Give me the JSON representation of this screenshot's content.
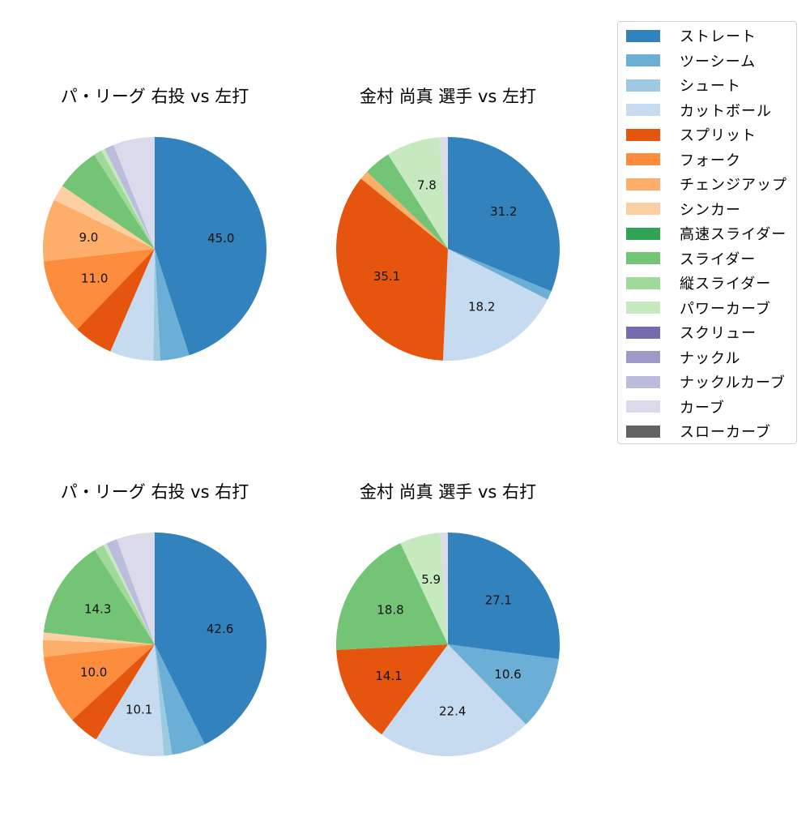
{
  "chart_data": [
    {
      "type": "pie",
      "title": "パ・リーグ 右投 vs 左打",
      "categories": [
        "ストレート",
        "ツーシーム",
        "シュート",
        "カットボール",
        "スプリット",
        "フォーク",
        "チェンジアップ",
        "シンカー",
        "スライダー",
        "縦スライダー",
        "パワーカーブ",
        "ナックルカーブ",
        "カーブ"
      ],
      "values": [
        45.0,
        4.2,
        1.0,
        6.3,
        5.7,
        11.0,
        9.0,
        2.3,
        6.4,
        1.2,
        0.5,
        1.4,
        6.0
      ],
      "labels_shown": {
        "ストレート": "45.0",
        "フォーク": "11.0",
        "チェンジアップ": "9.0"
      },
      "startangle": 90,
      "counterclock": false
    },
    {
      "type": "pie",
      "title": "金村 尚真 選手 vs 左打",
      "categories": [
        "ストレート",
        "ツーシーム",
        "カットボール",
        "スプリット",
        "チェンジアップ",
        "スライダー",
        "パワーカーブ",
        "カーブ"
      ],
      "values": [
        31.2,
        1.3,
        18.2,
        35.1,
        1.3,
        3.9,
        7.8,
        1.2
      ],
      "labels_shown": {
        "ストレート": "31.2",
        "カットボール": "18.2",
        "スプリット": "35.1",
        "パワーカーブ": "7.8"
      },
      "startangle": 90,
      "counterclock": false
    },
    {
      "type": "pie",
      "title": "パ・リーグ 右投 vs 右打",
      "categories": [
        "ストレート",
        "ツーシーム",
        "シュート",
        "カットボール",
        "スプリット",
        "フォーク",
        "チェンジアップ",
        "シンカー",
        "スライダー",
        "縦スライダー",
        "パワーカーブ",
        "ナックルカーブ",
        "カーブ"
      ],
      "values": [
        42.6,
        4.9,
        1.2,
        10.1,
        4.4,
        10.0,
        2.4,
        1.1,
        14.3,
        1.4,
        0.5,
        1.6,
        5.5
      ],
      "labels_shown": {
        "ストレート": "42.6",
        "カットボール": "10.1",
        "フォーク": "10.0",
        "スライダー": "14.3"
      },
      "startangle": 90,
      "counterclock": false
    },
    {
      "type": "pie",
      "title": "金村 尚真 選手 vs 右打",
      "categories": [
        "ストレート",
        "ツーシーム",
        "カットボール",
        "スプリット",
        "スライダー",
        "パワーカーブ",
        "カーブ"
      ],
      "values": [
        27.1,
        10.6,
        22.4,
        14.1,
        18.8,
        5.9,
        1.1
      ],
      "labels_shown": {
        "ストレート": "27.1",
        "ツーシーム": "10.6",
        "カットボール": "22.4",
        "スプリット": "14.1",
        "スライダー": "18.8",
        "パワーカーブ": "5.9"
      },
      "startangle": 90,
      "counterclock": false
    }
  ],
  "legend": {
    "items": [
      {
        "label": "ストレート",
        "color": "#3182bd"
      },
      {
        "label": "ツーシーム",
        "color": "#6baed6"
      },
      {
        "label": "シュート",
        "color": "#9ecae1"
      },
      {
        "label": "カットボール",
        "color": "#c6dbef"
      },
      {
        "label": "スプリット",
        "color": "#e6550d"
      },
      {
        "label": "フォーク",
        "color": "#fd8d3c"
      },
      {
        "label": "チェンジアップ",
        "color": "#fdae6b"
      },
      {
        "label": "シンカー",
        "color": "#fdd0a2"
      },
      {
        "label": "高速スライダー",
        "color": "#31a354"
      },
      {
        "label": "スライダー",
        "color": "#74c476"
      },
      {
        "label": "縦スライダー",
        "color": "#a1d99b"
      },
      {
        "label": "パワーカーブ",
        "color": "#c7e9c0"
      },
      {
        "label": "スクリュー",
        "color": "#756bb1"
      },
      {
        "label": "ナックル",
        "color": "#9e9ac8"
      },
      {
        "label": "ナックルカーブ",
        "color": "#bcbddc"
      },
      {
        "label": "カーブ",
        "color": "#dadaeb"
      },
      {
        "label": "スローカーブ",
        "color": "#636363"
      }
    ]
  },
  "panels": [
    {
      "title": "パ・リーグ 右投 vs 左打"
    },
    {
      "title": "金村 尚真 選手 vs 左打"
    },
    {
      "title": "パ・リーグ 右投 vs 右打"
    },
    {
      "title": "金村 尚真 選手 vs 右打"
    }
  ]
}
